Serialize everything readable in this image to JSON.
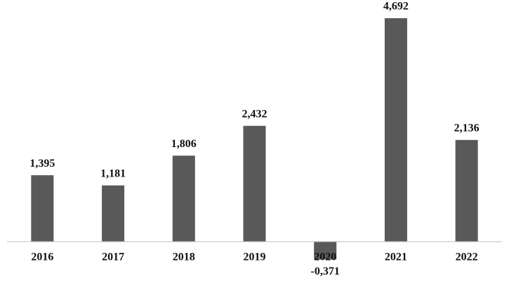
{
  "chart_data": {
    "type": "bar",
    "categories": [
      "2016",
      "2017",
      "2018",
      "2019",
      "2020",
      "2021",
      "2022"
    ],
    "values": [
      1.395,
      1.181,
      1.806,
      2.432,
      -0.371,
      4.692,
      2.136
    ],
    "value_labels": [
      "1,395",
      "1,181",
      "1,806",
      "2,432",
      "-0,371",
      "4,692",
      "2,136"
    ],
    "color": "#595959"
  }
}
